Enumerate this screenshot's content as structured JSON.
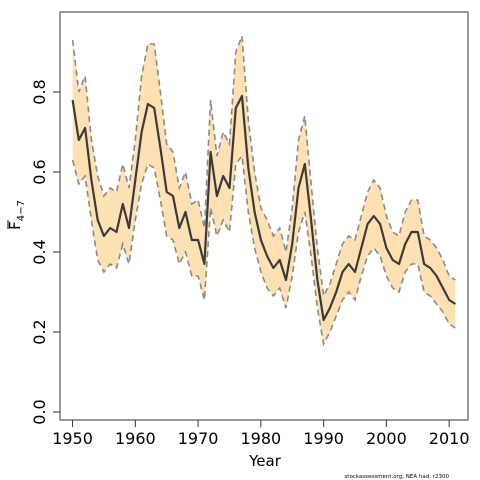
{
  "chart_data": {
    "type": "line",
    "title": "",
    "xlabel": "Year",
    "ylabel_main": "F",
    "ylabel_sub": "4−7",
    "xlim": [
      1948,
      2013
    ],
    "ylim": [
      -0.02,
      1.0
    ],
    "xticks": [
      1950,
      1960,
      1970,
      1980,
      1990,
      2000,
      2010
    ],
    "yticks": [
      0.0,
      0.2,
      0.4,
      0.6,
      0.8
    ],
    "ytick_labels": [
      "0.0",
      "0.2",
      "0.4",
      "0.6",
      "0.8"
    ],
    "grid": false,
    "credit": "stockassessment.org, NEA had, r2300",
    "colors": {
      "band_fill": "#fde1b2",
      "band_edge": "#8a8a8a",
      "line": "#3a3a3a",
      "axis": "#333333"
    },
    "x": [
      1950,
      1951,
      1952,
      1953,
      1954,
      1955,
      1956,
      1957,
      1958,
      1959,
      1960,
      1961,
      1962,
      1963,
      1964,
      1965,
      1966,
      1967,
      1968,
      1969,
      1970,
      1971,
      1972,
      1973,
      1974,
      1975,
      1976,
      1977,
      1978,
      1979,
      1980,
      1981,
      1982,
      1983,
      1984,
      1985,
      1986,
      1987,
      1988,
      1989,
      1990,
      1991,
      1992,
      1993,
      1994,
      1995,
      1996,
      1997,
      1998,
      1999,
      2000,
      2001,
      2002,
      2003,
      2004,
      2005,
      2006,
      2007,
      2008,
      2009,
      2010,
      2011
    ],
    "series": [
      {
        "role": "estimate",
        "values": [
          0.78,
          0.68,
          0.71,
          0.58,
          0.48,
          0.44,
          0.46,
          0.45,
          0.52,
          0.46,
          0.58,
          0.7,
          0.77,
          0.76,
          0.66,
          0.55,
          0.54,
          0.46,
          0.5,
          0.43,
          0.43,
          0.37,
          0.65,
          0.54,
          0.59,
          0.56,
          0.76,
          0.79,
          0.61,
          0.5,
          0.43,
          0.39,
          0.36,
          0.38,
          0.33,
          0.42,
          0.56,
          0.62,
          0.48,
          0.33,
          0.23,
          0.26,
          0.3,
          0.35,
          0.37,
          0.35,
          0.41,
          0.47,
          0.49,
          0.47,
          0.41,
          0.38,
          0.37,
          0.42,
          0.45,
          0.45,
          0.37,
          0.36,
          0.34,
          0.31,
          0.28,
          0.27
        ]
      },
      {
        "role": "upper",
        "values": [
          0.93,
          0.8,
          0.84,
          0.68,
          0.59,
          0.54,
          0.56,
          0.55,
          0.62,
          0.56,
          0.68,
          0.84,
          0.92,
          0.92,
          0.8,
          0.67,
          0.65,
          0.56,
          0.6,
          0.52,
          0.53,
          0.46,
          0.78,
          0.64,
          0.7,
          0.67,
          0.9,
          0.94,
          0.73,
          0.6,
          0.51,
          0.48,
          0.44,
          0.46,
          0.4,
          0.51,
          0.68,
          0.74,
          0.57,
          0.41,
          0.29,
          0.32,
          0.37,
          0.42,
          0.44,
          0.43,
          0.49,
          0.55,
          0.58,
          0.56,
          0.49,
          0.45,
          0.44,
          0.5,
          0.53,
          0.53,
          0.44,
          0.43,
          0.41,
          0.38,
          0.34,
          0.33
        ]
      },
      {
        "role": "lower",
        "values": [
          0.63,
          0.57,
          0.59,
          0.48,
          0.38,
          0.35,
          0.37,
          0.36,
          0.42,
          0.37,
          0.48,
          0.57,
          0.62,
          0.61,
          0.53,
          0.44,
          0.43,
          0.37,
          0.4,
          0.34,
          0.34,
          0.28,
          0.51,
          0.44,
          0.48,
          0.45,
          0.62,
          0.64,
          0.5,
          0.41,
          0.35,
          0.31,
          0.29,
          0.31,
          0.26,
          0.34,
          0.45,
          0.5,
          0.39,
          0.26,
          0.17,
          0.2,
          0.24,
          0.28,
          0.3,
          0.28,
          0.34,
          0.39,
          0.41,
          0.39,
          0.34,
          0.31,
          0.3,
          0.35,
          0.37,
          0.37,
          0.3,
          0.29,
          0.27,
          0.25,
          0.22,
          0.21
        ]
      }
    ]
  }
}
